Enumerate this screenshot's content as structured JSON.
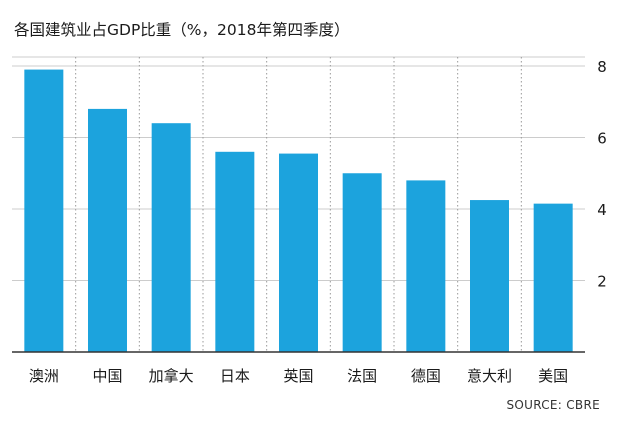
{
  "title": "各国建筑业占GDP比重（%，2018年第四季度）",
  "source": "SOURCE: CBRE",
  "chart_data": {
    "type": "bar",
    "title": "各国建筑业占GDP比重（%，2018年第四季度）",
    "categories": [
      "澳洲",
      "中国",
      "加拿大",
      "日本",
      "英国",
      "法国",
      "德国",
      "意大利",
      "美国"
    ],
    "values": [
      7.9,
      6.8,
      6.4,
      5.6,
      5.55,
      5.0,
      4.8,
      4.25,
      4.15
    ],
    "ylim": [
      0,
      8
    ],
    "yticks": [
      2,
      4,
      6,
      8
    ],
    "y_axis_position": "right",
    "grid": "horizontal",
    "colors": {
      "bar": "#1ca3dd",
      "grid": "#cccccc",
      "axis": "#333333"
    }
  }
}
